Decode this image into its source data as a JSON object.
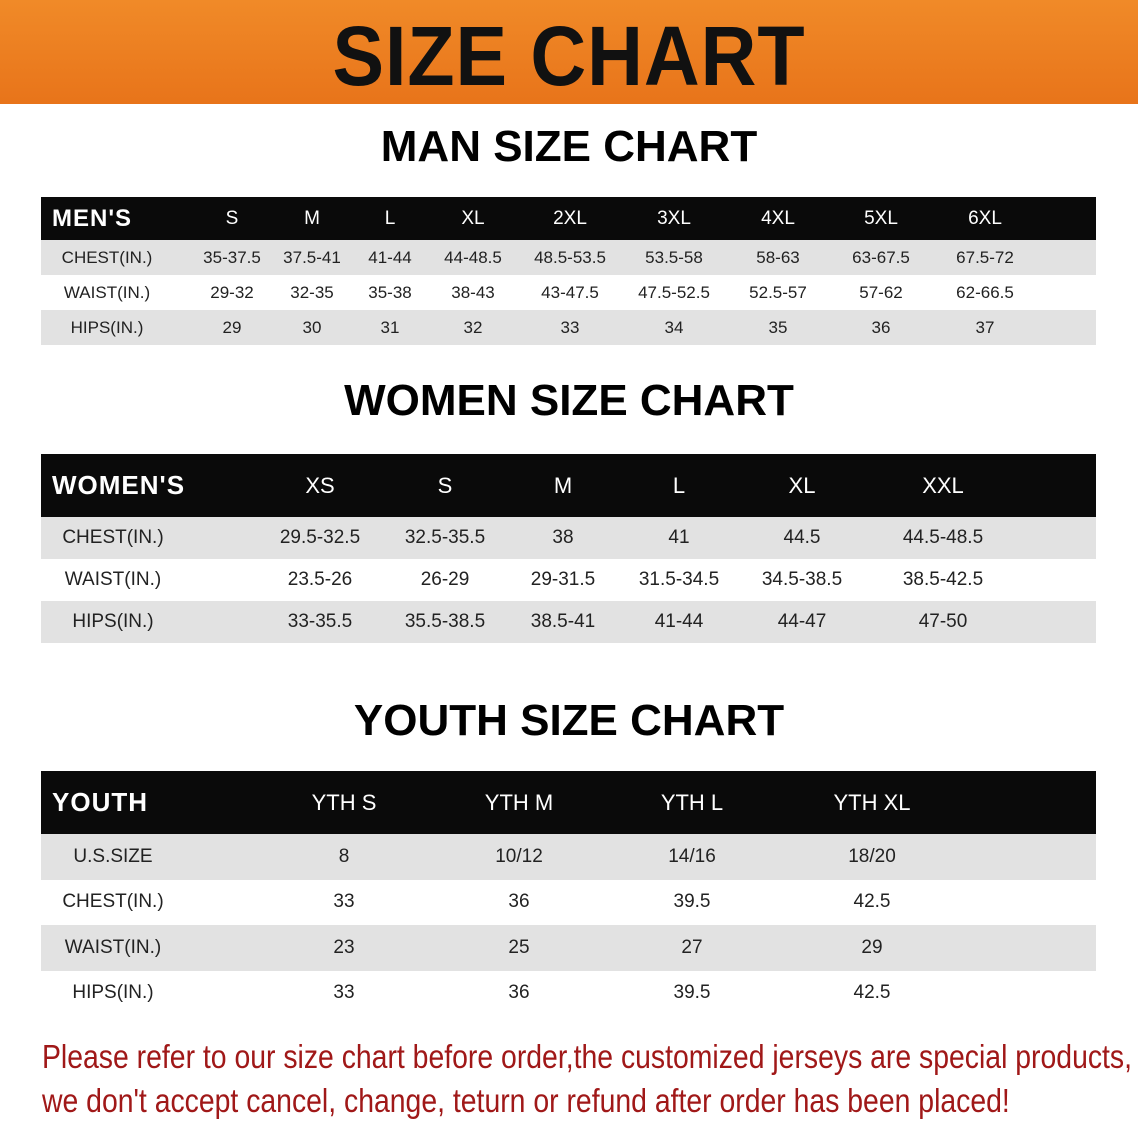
{
  "banner": {
    "title": "SIZE CHART",
    "color": "#ec7d1f"
  },
  "men": {
    "title": "MAN SIZE CHART",
    "header": [
      "MEN'S",
      "S",
      "M",
      "L",
      "XL",
      "2XL",
      "3XL",
      "4XL",
      "5XL",
      "6XL"
    ],
    "rows": [
      [
        "CHEST(IN.)",
        "35-37.5",
        "37.5-41",
        "41-44",
        "44-48.5",
        "48.5-53.5",
        "53.5-58",
        "58-63",
        "63-67.5",
        "67.5-72"
      ],
      [
        "WAIST(IN.)",
        "29-32",
        "32-35",
        "35-38",
        "38-43",
        "43-47.5",
        "47.5-52.5",
        "52.5-57",
        "57-62",
        "62-66.5"
      ],
      [
        "HIPS(IN.)",
        "29",
        "30",
        "31",
        "32",
        "33",
        "34",
        "35",
        "36",
        "37"
      ]
    ]
  },
  "women": {
    "title": "WOMEN SIZE CHART",
    "header": [
      "WOMEN'S",
      "XS",
      "S",
      "M",
      "L",
      "XL",
      "XXL"
    ],
    "rows": [
      [
        "CHEST(IN.)",
        "29.5-32.5",
        "32.5-35.5",
        "38",
        "41",
        "44.5",
        "44.5-48.5"
      ],
      [
        "WAIST(IN.)",
        "23.5-26",
        "26-29",
        "29-31.5",
        "31.5-34.5",
        "34.5-38.5",
        "38.5-42.5"
      ],
      [
        "HIPS(IN.)",
        "33-35.5",
        "35.5-38.5",
        "38.5-41",
        "41-44",
        "44-47",
        "47-50"
      ]
    ]
  },
  "youth": {
    "title": "YOUTH SIZE CHART",
    "header": [
      "YOUTH",
      "YTH S",
      "YTH M",
      "YTH L",
      "YTH XL"
    ],
    "rows": [
      [
        "U.S.SIZE",
        "8",
        "10/12",
        "14/16",
        "18/20"
      ],
      [
        "CHEST(IN.)",
        "33",
        "36",
        "39.5",
        "42.5"
      ],
      [
        "WAIST(IN.)",
        "23",
        "25",
        "27",
        "29"
      ],
      [
        "HIPS(IN.)",
        "33",
        "36",
        "39.5",
        "42.5"
      ]
    ]
  },
  "footer": {
    "line1": "Please refer to our size chart before order,the customized jerseys are special products,",
    "line2": "we don't accept cancel, change, teturn or refund after order has been placed!",
    "color": "#a01818"
  }
}
